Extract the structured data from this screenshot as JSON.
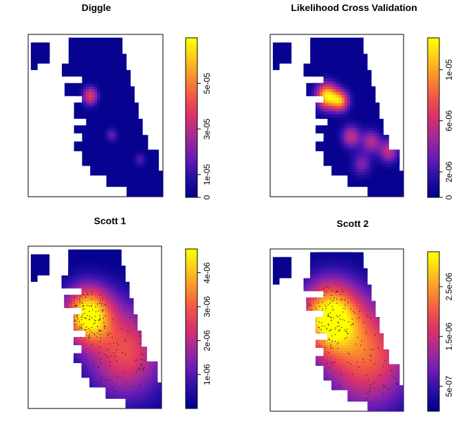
{
  "colors": {
    "palette": [
      "#00008b",
      "#2a0fa6",
      "#6a1cb4",
      "#a12a9a",
      "#d6306c",
      "#f0524a",
      "#f98b2d",
      "#fcc51f",
      "#ffff00"
    ]
  },
  "chart_data": [
    {
      "type": "heatmap",
      "title": "Diggle",
      "colorbar": {
        "min": 0,
        "max": 7e-05,
        "ticks": [
          {
            "value": 0,
            "label": "0"
          },
          {
            "value": 1e-05,
            "label": "1e-05"
          },
          {
            "value": 3e-05,
            "label": "3e-05"
          },
          {
            "value": 5e-05,
            "label": "5e-05"
          }
        ]
      },
      "hotspots": [
        {
          "x": 0.46,
          "y": 0.38,
          "level": 0.55,
          "spread": 0.04
        },
        {
          "x": 0.62,
          "y": 0.62,
          "level": 0.25,
          "spread": 0.03
        },
        {
          "x": 0.83,
          "y": 0.77,
          "level": 0.2,
          "spread": 0.03
        }
      ]
    },
    {
      "type": "heatmap",
      "title": "Likelihood Cross Validation",
      "colorbar": {
        "min": 0,
        "max": 1.25e-05,
        "ticks": [
          {
            "value": 0,
            "label": "0"
          },
          {
            "value": 2e-06,
            "label": "2e-06"
          },
          {
            "value": 6e-06,
            "label": "6e-06"
          },
          {
            "value": 1e-05,
            "label": "1e-05"
          }
        ]
      },
      "hotspots": [
        {
          "x": 0.42,
          "y": 0.38,
          "level": 0.95,
          "spread": 0.055
        },
        {
          "x": 0.52,
          "y": 0.41,
          "level": 0.75,
          "spread": 0.045
        },
        {
          "x": 0.6,
          "y": 0.63,
          "level": 0.45,
          "spread": 0.05
        },
        {
          "x": 0.75,
          "y": 0.66,
          "level": 0.4,
          "spread": 0.05
        },
        {
          "x": 0.88,
          "y": 0.72,
          "level": 0.45,
          "spread": 0.05
        },
        {
          "x": 0.68,
          "y": 0.8,
          "level": 0.3,
          "spread": 0.05
        }
      ]
    },
    {
      "type": "heatmap",
      "title": "Scott 1",
      "colorbar": {
        "min": 0,
        "max": 4.7e-06,
        "ticks": [
          {
            "value": 1e-06,
            "label": "1e-06"
          },
          {
            "value": 2e-06,
            "label": "2e-06"
          },
          {
            "value": 3e-06,
            "label": "3e-06"
          },
          {
            "value": 4e-06,
            "label": "4e-06"
          }
        ]
      },
      "hotspots": [
        {
          "x": 0.44,
          "y": 0.42,
          "level": 1.0,
          "spread": 0.12
        },
        {
          "x": 0.72,
          "y": 0.65,
          "level": 0.6,
          "spread": 0.2
        }
      ]
    },
    {
      "type": "heatmap",
      "title": "Scott 2",
      "colorbar": {
        "min": 0,
        "max": 3.2e-06,
        "ticks": [
          {
            "value": 5e-07,
            "label": "5e-07"
          },
          {
            "value": 1.5e-06,
            "label": "1.5e-06"
          },
          {
            "value": 2.5e-06,
            "label": "2.5e-06"
          }
        ]
      },
      "hotspots": [
        {
          "x": 0.44,
          "y": 0.42,
          "level": 1.0,
          "spread": 0.15
        },
        {
          "x": 0.72,
          "y": 0.66,
          "level": 0.65,
          "spread": 0.23
        }
      ]
    }
  ]
}
